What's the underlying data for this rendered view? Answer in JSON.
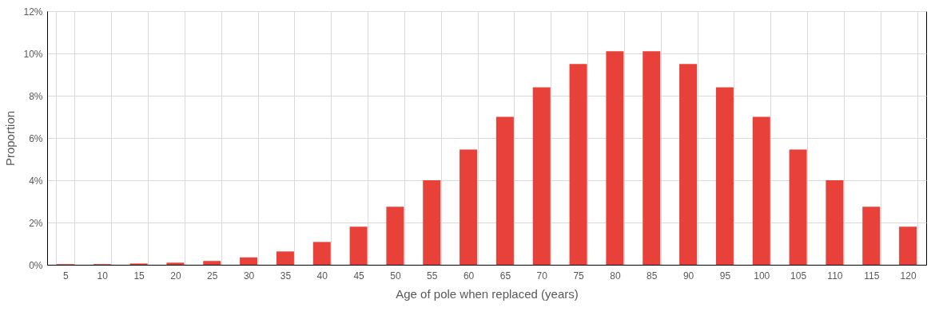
{
  "chart_data": {
    "type": "bar",
    "xlabel": "Age of pole when replaced (years)",
    "ylabel": "Proportion",
    "categories": [
      "5",
      "10",
      "15",
      "20",
      "25",
      "30",
      "35",
      "40",
      "45",
      "50",
      "55",
      "60",
      "65",
      "70",
      "75",
      "80",
      "85",
      "90",
      "95",
      "100",
      "105",
      "110",
      "115",
      "120"
    ],
    "values": [
      0.03,
      0.03,
      0.06,
      0.1,
      0.18,
      0.35,
      0.63,
      1.08,
      1.8,
      2.75,
      4.0,
      5.45,
      7.0,
      8.4,
      9.5,
      10.1,
      10.1,
      9.5,
      8.4,
      7.0,
      5.45,
      4.0,
      2.75,
      1.8
    ],
    "color": "#e8413a",
    "ylim": [
      0,
      12
    ],
    "yticks": [
      {
        "value": 0,
        "label": "0%"
      },
      {
        "value": 2,
        "label": "2%"
      },
      {
        "value": 4,
        "label": "4%"
      },
      {
        "value": 6,
        "label": "6%"
      },
      {
        "value": 8,
        "label": "8%"
      },
      {
        "value": 10,
        "label": "10%"
      },
      {
        "value": 12,
        "label": "12%"
      }
    ],
    "grid": true
  }
}
